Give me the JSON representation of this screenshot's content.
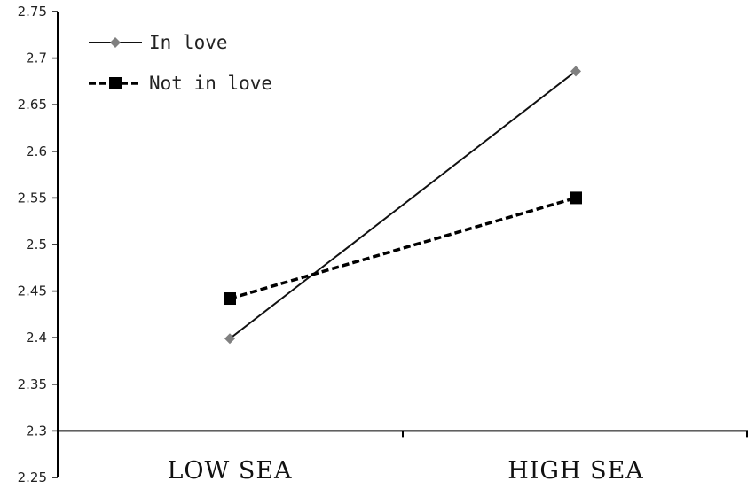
{
  "chart_data": {
    "type": "line",
    "title": "",
    "xlabel": "",
    "ylabel": "",
    "categories": [
      "LOW SEA",
      "HIGH SEA"
    ],
    "ylim": [
      2.25,
      2.75
    ],
    "y_ticks": [
      "2.25",
      "2.3",
      "2.35",
      "2.4",
      "2.45",
      "2.5",
      "2.55",
      "2.6",
      "2.65",
      "2.7",
      "2.75"
    ],
    "x_axis_crosses_at": 2.3,
    "grid": false,
    "legend_position": "top-left",
    "series": [
      {
        "name": "In love",
        "values": [
          2.399,
          2.686
        ],
        "color": "#808080",
        "line_color": "#111111",
        "line_style": "solid",
        "marker": "diamond"
      },
      {
        "name": "Not in love",
        "values": [
          2.442,
          2.55
        ],
        "color": "#000000",
        "line_color": "#000000",
        "line_style": "dashed",
        "marker": "square"
      }
    ]
  }
}
